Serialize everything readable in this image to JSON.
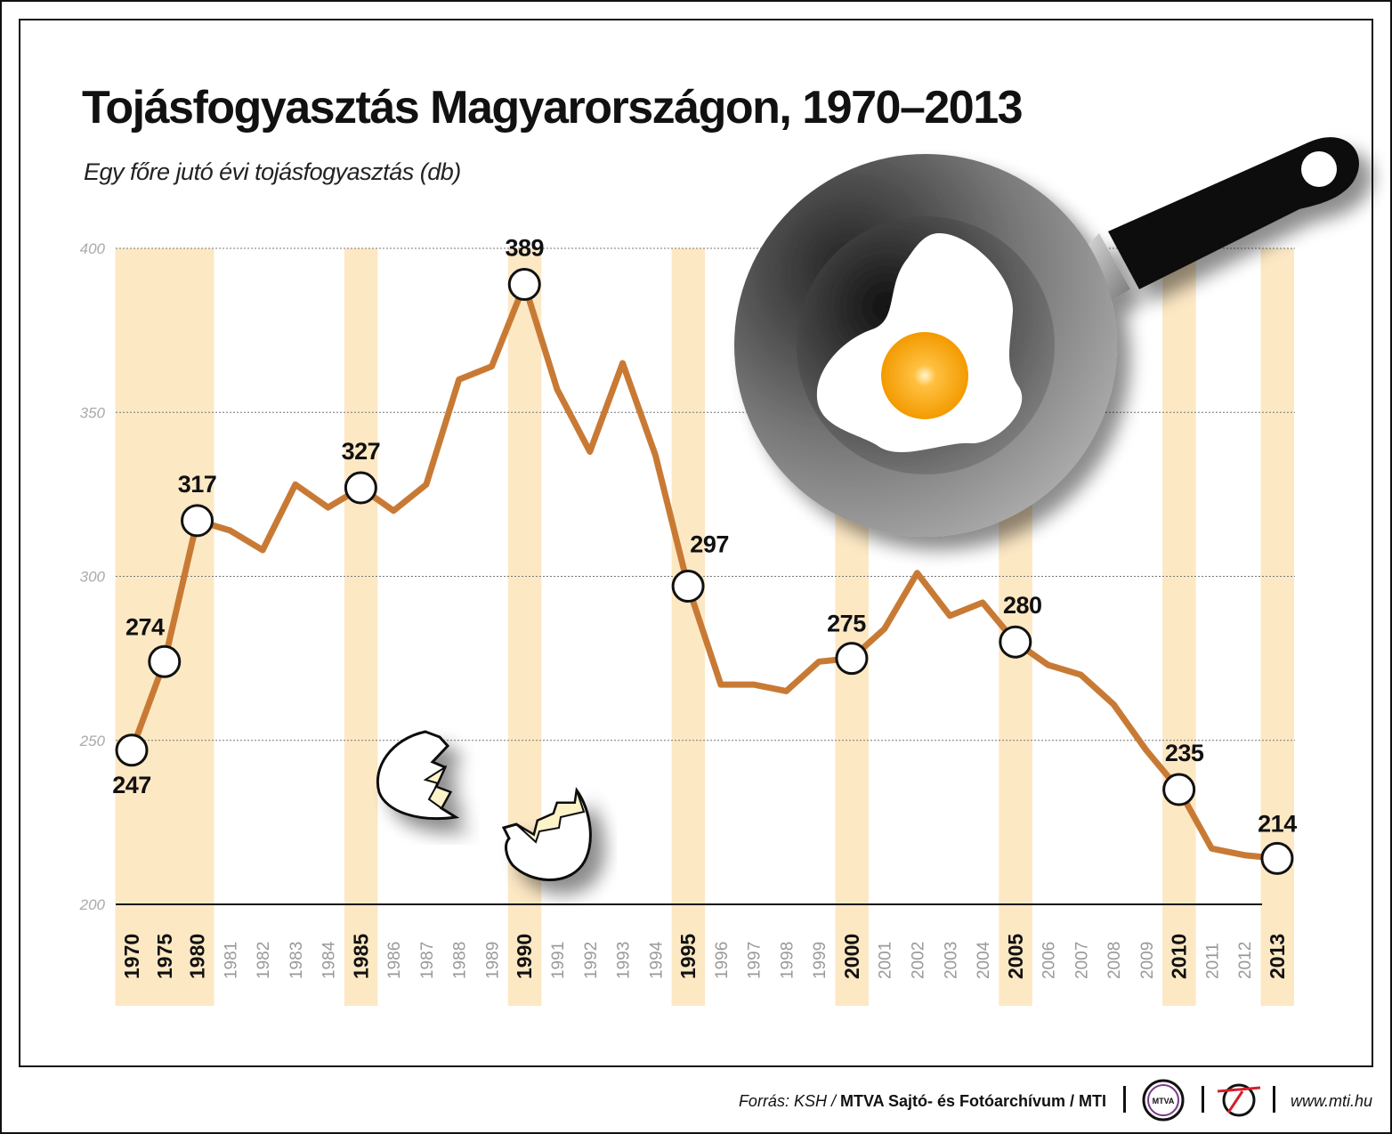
{
  "chart_data": {
    "type": "line",
    "title": "Tojásfogyasztás Magyarországon, 1970–2013",
    "subtitle": "Egy főre jutó évi tojásfogyasztás (db)",
    "xlabel": "",
    "ylabel": "",
    "ylim": [
      200,
      400
    ],
    "yticks": [
      "200",
      "250",
      "300",
      "350",
      "400"
    ],
    "grid": true,
    "categories": [
      "1970",
      "1975",
      "1980",
      "1981",
      "1982",
      "1983",
      "1984",
      "1985",
      "1986",
      "1987",
      "1988",
      "1989",
      "1990",
      "1991",
      "1992",
      "1993",
      "1994",
      "1995",
      "1996",
      "1997",
      "1998",
      "1999",
      "2000",
      "2001",
      "2002",
      "2003",
      "2004",
      "2005",
      "2006",
      "2007",
      "2008",
      "2009",
      "2010",
      "2011",
      "2012",
      "2013"
    ],
    "highlighted_years": [
      "1970",
      "1975",
      "1980",
      "1985",
      "1990",
      "1995",
      "2000",
      "2005",
      "2010",
      "2013"
    ],
    "values": [
      247,
      274,
      317,
      314,
      308,
      328,
      321,
      327,
      320,
      328,
      360,
      364,
      389,
      357,
      338,
      365,
      337,
      297,
      267,
      267,
      265,
      274,
      275,
      284,
      301,
      288,
      292,
      280,
      273,
      270,
      261,
      247,
      235,
      217,
      215,
      214
    ],
    "data_labels": {
      "1970": "247",
      "1975": "274",
      "1980": "317",
      "1985": "327",
      "1990": "389",
      "1995": "297",
      "2000": "275",
      "2005": "280",
      "2010": "235",
      "2013": "214"
    },
    "line_color": "#c87a35",
    "band_color": "#fde8c4"
  },
  "footer": {
    "source_prefix": "Forrás: KSH / ",
    "source_bold": "MTVA Sajtó- és Fotóarchívum / MTI",
    "logo_text": "MTVA",
    "website": "www.mti.hu"
  }
}
